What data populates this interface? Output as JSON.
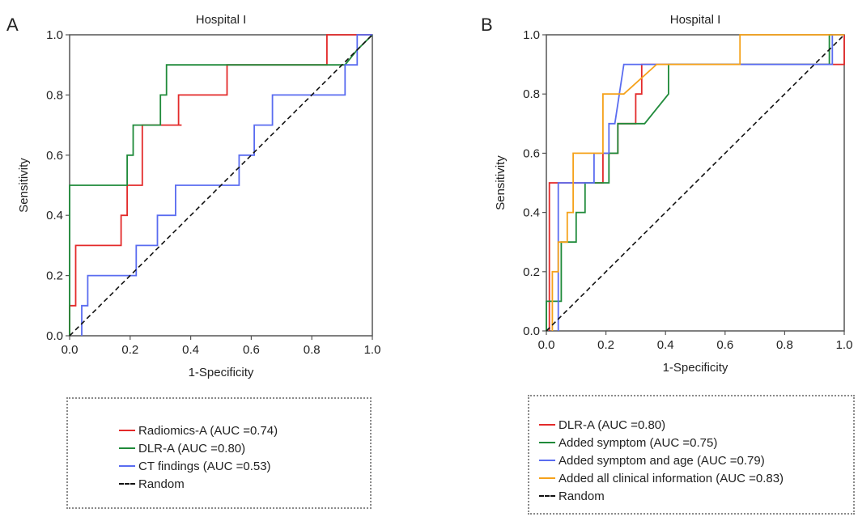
{
  "figure": {
    "panels": [
      {
        "letter": "A",
        "legend_entries": [
          {
            "label": "Radiomics-A (AUC =0.74)",
            "color": "#e32a2a",
            "style": "solid"
          },
          {
            "label": "DLR-A (AUC =0.80)",
            "color": "#1f8a3a",
            "style": "solid"
          },
          {
            "label": "CT findings (AUC =0.53)",
            "color": "#5a6cf0",
            "style": "solid"
          },
          {
            "label": "Random",
            "color": "#111111",
            "style": "dashed"
          }
        ]
      },
      {
        "letter": "B",
        "legend_entries": [
          {
            "label": "DLR-A (AUC =0.80)",
            "color": "#e32a2a",
            "style": "solid"
          },
          {
            "label": "Added symptom (AUC =0.75)",
            "color": "#1f8a3a",
            "style": "solid"
          },
          {
            "label": "Added symptom and age (AUC =0.79)",
            "color": "#5a6cf0",
            "style": "solid"
          },
          {
            "label": "Added all clinical information (AUC =0.83)",
            "color": "#f5a21b",
            "style": "solid"
          },
          {
            "label": "Random",
            "color": "#111111",
            "style": "dashed"
          }
        ]
      }
    ]
  },
  "chart_data": [
    {
      "type": "line",
      "title": "Hospital I",
      "xlabel": "1-Specificity",
      "ylabel": "Sensitivity",
      "xlim": [
        0,
        1
      ],
      "ylim": [
        0,
        1
      ],
      "xticks": [
        "0.0",
        "0.2",
        "0.4",
        "0.6",
        "0.8",
        "1.0"
      ],
      "yticks": [
        "0.0",
        "0.2",
        "0.4",
        "0.6",
        "0.8",
        "1.0"
      ],
      "grid": false,
      "series": [
        {
          "name": "Radiomics-A (AUC =0.74)",
          "color": "#e32a2a",
          "style": "solid",
          "points": [
            [
              0,
              0
            ],
            [
              0,
              0.1
            ],
            [
              0.02,
              0.1
            ],
            [
              0.02,
              0.3
            ],
            [
              0.17,
              0.3
            ],
            [
              0.17,
              0.4
            ],
            [
              0.19,
              0.4
            ],
            [
              0.19,
              0.5
            ],
            [
              0.24,
              0.5
            ],
            [
              0.24,
              0.7
            ],
            [
              0.3,
              0.7
            ],
            [
              0.3,
              0.7
            ],
            [
              0.32,
              0.7
            ],
            [
              0.32,
              0.7
            ],
            [
              0.37,
              0.7
            ],
            [
              0.37,
              0.7
            ],
            [
              0.32,
              0.7
            ],
            [
              0.32,
              0.7
            ],
            [
              0.36,
              0.7
            ],
            [
              0.36,
              0.8
            ],
            [
              0.52,
              0.8
            ],
            [
              0.52,
              0.9
            ],
            [
              0.85,
              0.9
            ],
            [
              0.85,
              1.0
            ],
            [
              1.0,
              1.0
            ]
          ]
        },
        {
          "name": "DLR-A (AUC =0.80)",
          "color": "#1f8a3a",
          "style": "solid",
          "points": [
            [
              0,
              0
            ],
            [
              0,
              0.5
            ],
            [
              0.19,
              0.5
            ],
            [
              0.19,
              0.6
            ],
            [
              0.21,
              0.6
            ],
            [
              0.21,
              0.7
            ],
            [
              0.3,
              0.7
            ],
            [
              0.3,
              0.8
            ],
            [
              0.32,
              0.8
            ],
            [
              0.32,
              0.9
            ],
            [
              0.91,
              0.9
            ],
            [
              0.91,
              0.9
            ],
            [
              0.95,
              0.95
            ],
            [
              1.0,
              1.0
            ]
          ]
        },
        {
          "name": "CT findings (AUC =0.53)",
          "color": "#5a6cf0",
          "style": "solid",
          "points": [
            [
              0.04,
              0
            ],
            [
              0.04,
              0.1
            ],
            [
              0.06,
              0.1
            ],
            [
              0.06,
              0.2
            ],
            [
              0.22,
              0.2
            ],
            [
              0.22,
              0.3
            ],
            [
              0.29,
              0.3
            ],
            [
              0.29,
              0.4
            ],
            [
              0.35,
              0.4
            ],
            [
              0.35,
              0.5
            ],
            [
              0.56,
              0.5
            ],
            [
              0.56,
              0.6
            ],
            [
              0.61,
              0.6
            ],
            [
              0.61,
              0.7
            ],
            [
              0.67,
              0.7
            ],
            [
              0.67,
              0.8
            ],
            [
              0.91,
              0.8
            ],
            [
              0.91,
              0.9
            ],
            [
              0.95,
              0.9
            ],
            [
              0.95,
              1.0
            ],
            [
              1.0,
              1.0
            ]
          ]
        },
        {
          "name": "Random",
          "color": "#111111",
          "style": "dashed",
          "points": [
            [
              0,
              0
            ],
            [
              1,
              1
            ]
          ]
        }
      ]
    },
    {
      "type": "line",
      "title": "Hospital I",
      "xlabel": "1-Specificity",
      "ylabel": "Sensitivity",
      "xlim": [
        0,
        1
      ],
      "ylim": [
        0,
        1
      ],
      "xticks": [
        "0.0",
        "0.2",
        "0.4",
        "0.6",
        "0.8",
        "1.0"
      ],
      "yticks": [
        "0.0",
        "0.2",
        "0.4",
        "0.6",
        "0.8",
        "1.0"
      ],
      "grid": false,
      "series": [
        {
          "name": "DLR-A (AUC =0.80)",
          "color": "#e32a2a",
          "style": "solid",
          "points": [
            [
              0.01,
              0
            ],
            [
              0.01,
              0.5
            ],
            [
              0.19,
              0.5
            ],
            [
              0.19,
              0.6
            ],
            [
              0.24,
              0.6
            ],
            [
              0.24,
              0.7
            ],
            [
              0.3,
              0.7
            ],
            [
              0.3,
              0.8
            ],
            [
              0.32,
              0.8
            ],
            [
              0.32,
              0.9
            ],
            [
              1.0,
              0.9
            ],
            [
              1.0,
              1.0
            ]
          ]
        },
        {
          "name": "Added symptom (AUC =0.75)",
          "color": "#1f8a3a",
          "style": "solid",
          "points": [
            [
              0,
              0
            ],
            [
              0,
              0.1
            ],
            [
              0.05,
              0.1
            ],
            [
              0.05,
              0.3
            ],
            [
              0.1,
              0.3
            ],
            [
              0.1,
              0.4
            ],
            [
              0.13,
              0.4
            ],
            [
              0.13,
              0.5
            ],
            [
              0.21,
              0.5
            ],
            [
              0.21,
              0.6
            ],
            [
              0.24,
              0.6
            ],
            [
              0.24,
              0.7
            ],
            [
              0.33,
              0.7
            ],
            [
              0.41,
              0.8
            ],
            [
              0.41,
              0.9
            ],
            [
              0.95,
              0.9
            ],
            [
              0.95,
              1.0
            ],
            [
              1.0,
              1.0
            ]
          ]
        },
        {
          "name": "Added symptom and age (AUC =0.79)",
          "color": "#5a6cf0",
          "style": "solid",
          "points": [
            [
              0.04,
              0
            ],
            [
              0.04,
              0.5
            ],
            [
              0.16,
              0.5
            ],
            [
              0.16,
              0.6
            ],
            [
              0.21,
              0.6
            ],
            [
              0.21,
              0.7
            ],
            [
              0.23,
              0.7
            ],
            [
              0.26,
              0.9
            ],
            [
              0.96,
              0.9
            ],
            [
              0.96,
              1.0
            ],
            [
              1.0,
              1.0
            ]
          ]
        },
        {
          "name": "Added all clinical information (AUC =0.83)",
          "color": "#f5a21b",
          "style": "solid",
          "points": [
            [
              0.02,
              0
            ],
            [
              0.02,
              0.2
            ],
            [
              0.04,
              0.2
            ],
            [
              0.04,
              0.3
            ],
            [
              0.07,
              0.3
            ],
            [
              0.07,
              0.4
            ],
            [
              0.09,
              0.4
            ],
            [
              0.09,
              0.6
            ],
            [
              0.19,
              0.6
            ],
            [
              0.19,
              0.8
            ],
            [
              0.26,
              0.8
            ],
            [
              0.37,
              0.9
            ],
            [
              0.65,
              0.9
            ],
            [
              0.65,
              1.0
            ],
            [
              1.0,
              1.0
            ]
          ]
        },
        {
          "name": "Random",
          "color": "#111111",
          "style": "dashed",
          "points": [
            [
              0,
              0
            ],
            [
              1,
              1
            ]
          ]
        }
      ]
    }
  ]
}
